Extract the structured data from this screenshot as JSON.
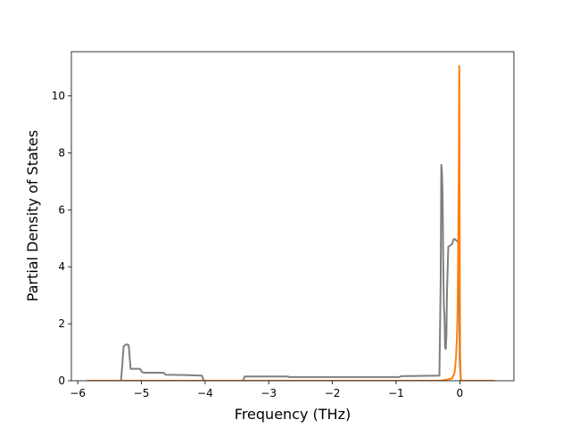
{
  "chart_data": {
    "type": "line",
    "title": "",
    "xlabel": "Frequency (THz)",
    "ylabel": "Partial Density of States",
    "xlim": [
      -6.1,
      0.85
    ],
    "ylim": [
      0,
      11.55
    ],
    "xticks": [
      -6,
      -5,
      -4,
      -3,
      -2,
      -1,
      0
    ],
    "xtick_labels": [
      "−6",
      "−5",
      "−4",
      "−3",
      "−2",
      "−1",
      "0"
    ],
    "yticks": [
      0,
      2,
      4,
      6,
      8,
      10
    ],
    "ytick_labels": [
      "0",
      "2",
      "4",
      "6",
      "8",
      "10"
    ],
    "grid": false,
    "legend": "none",
    "series": [
      {
        "color": "#7f7f7f",
        "x": [
          -5.85,
          -5.32,
          -5.3,
          -5.28,
          -5.24,
          -5.2,
          -5.17,
          -5.14,
          -5.02,
          -4.99,
          -4.95,
          -4.8,
          -4.65,
          -4.62,
          -4.3,
          -4.05,
          -4.02,
          -3.98,
          -3.4,
          -3.38,
          -3.36,
          -3.0,
          -2.7,
          -2.68,
          -2.0,
          -1.5,
          -0.95,
          -0.92,
          -0.32,
          -0.3,
          -0.29,
          -0.28,
          -0.27,
          -0.26,
          -0.25,
          -0.24,
          -0.23,
          -0.22,
          -0.21,
          -0.2,
          -0.18,
          -0.15,
          -0.12,
          -0.1,
          -0.08,
          -0.06,
          -0.04,
          -0.02,
          0.0,
          0.02,
          0.55
        ],
        "y": [
          0,
          0,
          0.55,
          1.2,
          1.28,
          1.25,
          0.42,
          0.42,
          0.42,
          0.3,
          0.28,
          0.28,
          0.28,
          0.21,
          0.2,
          0.18,
          0,
          0,
          0,
          0.15,
          0.15,
          0.15,
          0.15,
          0.13,
          0.13,
          0.13,
          0.13,
          0.16,
          0.18,
          3.5,
          7.58,
          7.3,
          6.5,
          4.2,
          2.6,
          2.3,
          1.15,
          1.12,
          1.6,
          3.2,
          4.7,
          4.75,
          4.8,
          4.95,
          4.98,
          4.93,
          4.9,
          4.85,
          0.6,
          0,
          0
        ]
      },
      {
        "color": "#ff7f0e",
        "x": [
          -5.85,
          -0.3,
          -0.12,
          -0.08,
          -0.06,
          -0.045,
          -0.035,
          -0.03,
          -0.025,
          -0.02,
          -0.015,
          -0.012,
          -0.01,
          -0.008,
          -0.006,
          -0.004,
          0.0,
          0.005,
          0.015,
          0.55
        ],
        "y": [
          0,
          0,
          0.08,
          0.3,
          0.8,
          1.5,
          2.4,
          3.3,
          4.7,
          6.0,
          7.5,
          8.8,
          10.3,
          11.05,
          10.5,
          8.0,
          4.0,
          1.0,
          0,
          0
        ]
      }
    ]
  }
}
